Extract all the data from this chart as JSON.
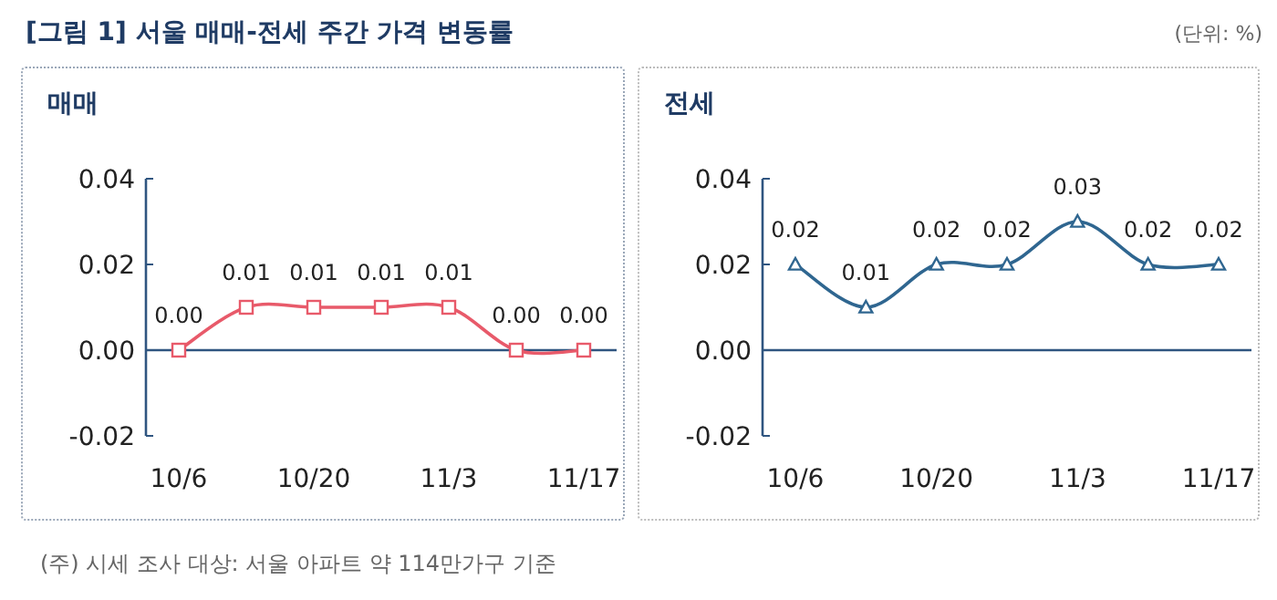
{
  "chart_data": [
    {
      "type": "line",
      "title": "매매",
      "categories": [
        "10/6",
        null,
        "10/20",
        null,
        "11/3",
        null,
        "11/17"
      ],
      "values": [
        0.0,
        0.01,
        0.01,
        0.01,
        0.01,
        0.0,
        0.0
      ],
      "value_labels": [
        "0.00",
        "0.01",
        "0.01",
        "0.01",
        "0.01",
        "0.00",
        "0.00"
      ],
      "color": "#e85a6a",
      "marker": "square",
      "ylim": [
        -0.02,
        0.04
      ],
      "yticks": [
        {
          "value": -0.02,
          "label": "-0.02"
        },
        {
          "value": 0,
          "label": "0.00"
        },
        {
          "value": 0.02,
          "label": "0.02"
        },
        {
          "value": 0.04,
          "label": "0.04"
        }
      ],
      "grid": false,
      "ref_lines": [
        {
          "axis": "y",
          "value": 0,
          "color": "#2f5580"
        }
      ],
      "annotations": [
        "[그림 1] 서울 매매-전세 주간 가격 변동률",
        "(주) 시세 조사 대상: 서울 아파트 약 114만가구 기준"
      ]
    },
    {
      "type": "line",
      "title": "전세",
      "categories": [
        "10/6",
        null,
        "10/20",
        null,
        "11/3",
        null,
        "11/17"
      ],
      "values": [
        0.02,
        0.01,
        0.02,
        0.02,
        0.03,
        0.02,
        0.02
      ],
      "value_labels": [
        "0.02",
        "0.01",
        "0.02",
        "0.02",
        "0.03",
        "0.02",
        "0.02"
      ],
      "color": "#2f6690",
      "marker": "triangle",
      "ylim": [
        -0.02,
        0.04
      ],
      "yticks": [
        {
          "value": -0.02,
          "label": "-0.02"
        },
        {
          "value": 0,
          "label": "0.00"
        },
        {
          "value": 0.02,
          "label": "0.02"
        },
        {
          "value": 0.04,
          "label": "0.04"
        }
      ],
      "grid": false,
      "ref_lines": [
        {
          "axis": "y",
          "value": 0,
          "color": "#2f5580"
        }
      ],
      "annotations": [
        "(단위: %)"
      ]
    }
  ]
}
